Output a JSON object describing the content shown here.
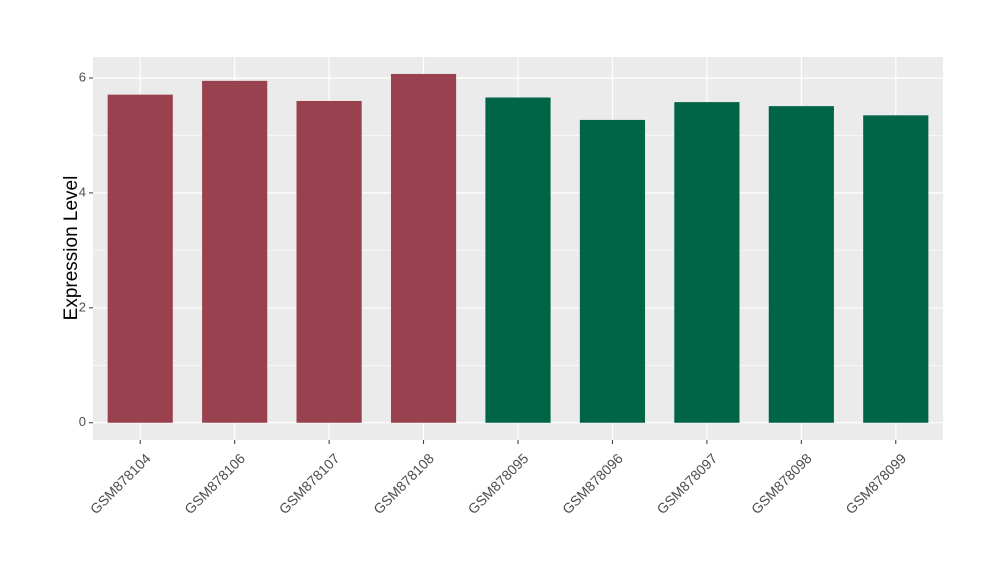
{
  "chart_data": {
    "type": "bar",
    "y_label": "Expression Level",
    "categories": [
      "GSM878104",
      "GSM878106",
      "GSM878107",
      "GSM878108",
      "GSM878095",
      "GSM878096",
      "GSM878097",
      "GSM878098",
      "GSM878099"
    ],
    "values": [
      5.71,
      5.95,
      5.6,
      6.07,
      5.66,
      5.27,
      5.58,
      5.51,
      5.35
    ],
    "colors": [
      "#9a414f",
      "#9a414f",
      "#9a414f",
      "#9a414f",
      "#006446",
      "#006446",
      "#006446",
      "#006446",
      "#006446"
    ],
    "ylim": [
      -0.3,
      6.365
    ],
    "yticks": [
      0,
      2,
      4,
      6
    ],
    "grid": true
  }
}
